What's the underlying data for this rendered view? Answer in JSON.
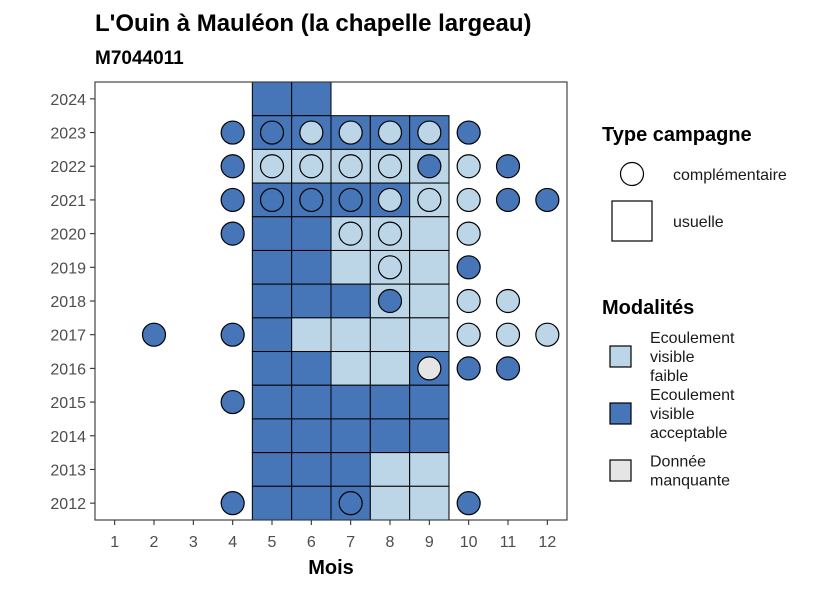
{
  "chart_data": {
    "type": "heatmap",
    "title": "L'Ouin à Mauléon (la chapelle largeau)",
    "subtitle": "M7044011",
    "xlabel": "Mois",
    "ylabel": "",
    "x_ticks": [
      "1",
      "2",
      "3",
      "4",
      "5",
      "6",
      "7",
      "8",
      "9",
      "10",
      "11",
      "12"
    ],
    "y_ticks": [
      "2012",
      "2013",
      "2014",
      "2015",
      "2016",
      "2017",
      "2018",
      "2019",
      "2020",
      "2021",
      "2022",
      "2023",
      "2024"
    ],
    "xlim": [
      0.5,
      12.5
    ],
    "ylim": [
      2011.5,
      2024.5
    ],
    "grid": false,
    "colors": {
      "faible": "#bcd6e8",
      "acceptable": "#4676b8",
      "manquante": "#e5e5e5"
    },
    "legend_campaign": {
      "title": "Type campagne",
      "items": [
        {
          "shape": "circle",
          "label": "complémentaire"
        },
        {
          "shape": "square",
          "label": "usuelle"
        }
      ]
    },
    "legend_modalites": {
      "title": "Modalités",
      "items": [
        {
          "key": "faible",
          "label_lines": [
            "Ecoulement",
            "visible",
            "faible"
          ]
        },
        {
          "key": "acceptable",
          "label_lines": [
            "Ecoulement",
            "visible",
            "acceptable"
          ]
        },
        {
          "key": "manquante",
          "label_lines": [
            "Donnée",
            "manquante"
          ]
        }
      ]
    },
    "squares": [
      {
        "year": 2024,
        "month": 5,
        "mod": "acceptable"
      },
      {
        "year": 2024,
        "month": 6,
        "mod": "acceptable"
      },
      {
        "year": 2023,
        "month": 5,
        "mod": "acceptable"
      },
      {
        "year": 2023,
        "month": 6,
        "mod": "acceptable"
      },
      {
        "year": 2023,
        "month": 7,
        "mod": "acceptable"
      },
      {
        "year": 2023,
        "month": 8,
        "mod": "acceptable"
      },
      {
        "year": 2023,
        "month": 9,
        "mod": "acceptable"
      },
      {
        "year": 2022,
        "month": 5,
        "mod": "faible"
      },
      {
        "year": 2022,
        "month": 6,
        "mod": "faible"
      },
      {
        "year": 2022,
        "month": 7,
        "mod": "faible"
      },
      {
        "year": 2022,
        "month": 8,
        "mod": "faible"
      },
      {
        "year": 2022,
        "month": 9,
        "mod": "faible"
      },
      {
        "year": 2021,
        "month": 5,
        "mod": "acceptable"
      },
      {
        "year": 2021,
        "month": 6,
        "mod": "acceptable"
      },
      {
        "year": 2021,
        "month": 7,
        "mod": "acceptable"
      },
      {
        "year": 2021,
        "month": 8,
        "mod": "acceptable"
      },
      {
        "year": 2021,
        "month": 9,
        "mod": "faible"
      },
      {
        "year": 2020,
        "month": 5,
        "mod": "acceptable"
      },
      {
        "year": 2020,
        "month": 6,
        "mod": "acceptable"
      },
      {
        "year": 2020,
        "month": 7,
        "mod": "faible"
      },
      {
        "year": 2020,
        "month": 8,
        "mod": "faible"
      },
      {
        "year": 2020,
        "month": 9,
        "mod": "faible"
      },
      {
        "year": 2019,
        "month": 5,
        "mod": "acceptable"
      },
      {
        "year": 2019,
        "month": 6,
        "mod": "acceptable"
      },
      {
        "year": 2019,
        "month": 7,
        "mod": "faible"
      },
      {
        "year": 2019,
        "month": 8,
        "mod": "faible"
      },
      {
        "year": 2019,
        "month": 9,
        "mod": "faible"
      },
      {
        "year": 2018,
        "month": 5,
        "mod": "acceptable"
      },
      {
        "year": 2018,
        "month": 6,
        "mod": "acceptable"
      },
      {
        "year": 2018,
        "month": 7,
        "mod": "acceptable"
      },
      {
        "year": 2018,
        "month": 8,
        "mod": "faible"
      },
      {
        "year": 2018,
        "month": 9,
        "mod": "faible"
      },
      {
        "year": 2017,
        "month": 5,
        "mod": "acceptable"
      },
      {
        "year": 2017,
        "month": 6,
        "mod": "faible"
      },
      {
        "year": 2017,
        "month": 7,
        "mod": "faible"
      },
      {
        "year": 2017,
        "month": 8,
        "mod": "faible"
      },
      {
        "year": 2017,
        "month": 9,
        "mod": "faible"
      },
      {
        "year": 2016,
        "month": 5,
        "mod": "acceptable"
      },
      {
        "year": 2016,
        "month": 6,
        "mod": "acceptable"
      },
      {
        "year": 2016,
        "month": 7,
        "mod": "faible"
      },
      {
        "year": 2016,
        "month": 8,
        "mod": "faible"
      },
      {
        "year": 2016,
        "month": 9,
        "mod": "acceptable"
      },
      {
        "year": 2015,
        "month": 5,
        "mod": "acceptable"
      },
      {
        "year": 2015,
        "month": 6,
        "mod": "acceptable"
      },
      {
        "year": 2015,
        "month": 7,
        "mod": "acceptable"
      },
      {
        "year": 2015,
        "month": 8,
        "mod": "acceptable"
      },
      {
        "year": 2015,
        "month": 9,
        "mod": "acceptable"
      },
      {
        "year": 2014,
        "month": 5,
        "mod": "acceptable"
      },
      {
        "year": 2014,
        "month": 6,
        "mod": "acceptable"
      },
      {
        "year": 2014,
        "month": 7,
        "mod": "acceptable"
      },
      {
        "year": 2014,
        "month": 8,
        "mod": "acceptable"
      },
      {
        "year": 2014,
        "month": 9,
        "mod": "acceptable"
      },
      {
        "year": 2013,
        "month": 5,
        "mod": "acceptable"
      },
      {
        "year": 2013,
        "month": 6,
        "mod": "acceptable"
      },
      {
        "year": 2013,
        "month": 7,
        "mod": "acceptable"
      },
      {
        "year": 2013,
        "month": 8,
        "mod": "faible"
      },
      {
        "year": 2013,
        "month": 9,
        "mod": "faible"
      },
      {
        "year": 2012,
        "month": 5,
        "mod": "acceptable"
      },
      {
        "year": 2012,
        "month": 6,
        "mod": "acceptable"
      },
      {
        "year": 2012,
        "month": 7,
        "mod": "acceptable"
      },
      {
        "year": 2012,
        "month": 8,
        "mod": "faible"
      },
      {
        "year": 2012,
        "month": 9,
        "mod": "faible"
      }
    ],
    "circles": [
      {
        "year": 2023,
        "month": 4,
        "mod": "acceptable"
      },
      {
        "year": 2023,
        "month": 5,
        "mod": "acceptable"
      },
      {
        "year": 2023,
        "month": 6,
        "mod": "faible"
      },
      {
        "year": 2023,
        "month": 7,
        "mod": "faible"
      },
      {
        "year": 2023,
        "month": 8,
        "mod": "faible"
      },
      {
        "year": 2023,
        "month": 9,
        "mod": "faible"
      },
      {
        "year": 2023,
        "month": 10,
        "mod": "acceptable"
      },
      {
        "year": 2022,
        "month": 4,
        "mod": "acceptable"
      },
      {
        "year": 2022,
        "month": 5,
        "mod": "faible"
      },
      {
        "year": 2022,
        "month": 6,
        "mod": "faible"
      },
      {
        "year": 2022,
        "month": 7,
        "mod": "faible"
      },
      {
        "year": 2022,
        "month": 8,
        "mod": "faible"
      },
      {
        "year": 2022,
        "month": 9,
        "mod": "acceptable"
      },
      {
        "year": 2022,
        "month": 10,
        "mod": "faible"
      },
      {
        "year": 2022,
        "month": 11,
        "mod": "acceptable"
      },
      {
        "year": 2021,
        "month": 4,
        "mod": "acceptable"
      },
      {
        "year": 2021,
        "month": 5,
        "mod": "acceptable"
      },
      {
        "year": 2021,
        "month": 6,
        "mod": "acceptable"
      },
      {
        "year": 2021,
        "month": 7,
        "mod": "acceptable"
      },
      {
        "year": 2021,
        "month": 8,
        "mod": "faible"
      },
      {
        "year": 2021,
        "month": 9,
        "mod": "faible"
      },
      {
        "year": 2021,
        "month": 10,
        "mod": "faible"
      },
      {
        "year": 2021,
        "month": 11,
        "mod": "acceptable"
      },
      {
        "year": 2021,
        "month": 12,
        "mod": "acceptable"
      },
      {
        "year": 2020,
        "month": 4,
        "mod": "acceptable"
      },
      {
        "year": 2020,
        "month": 7,
        "mod": "faible"
      },
      {
        "year": 2020,
        "month": 8,
        "mod": "faible"
      },
      {
        "year": 2020,
        "month": 10,
        "mod": "faible"
      },
      {
        "year": 2019,
        "month": 8,
        "mod": "faible"
      },
      {
        "year": 2019,
        "month": 10,
        "mod": "acceptable"
      },
      {
        "year": 2018,
        "month": 8,
        "mod": "acceptable"
      },
      {
        "year": 2018,
        "month": 10,
        "mod": "faible"
      },
      {
        "year": 2018,
        "month": 11,
        "mod": "faible"
      },
      {
        "year": 2017,
        "month": 2,
        "mod": "acceptable"
      },
      {
        "year": 2017,
        "month": 4,
        "mod": "acceptable"
      },
      {
        "year": 2017,
        "month": 10,
        "mod": "faible"
      },
      {
        "year": 2017,
        "month": 11,
        "mod": "faible"
      },
      {
        "year": 2017,
        "month": 12,
        "mod": "faible"
      },
      {
        "year": 2016,
        "month": 9,
        "mod": "manquante"
      },
      {
        "year": 2016,
        "month": 10,
        "mod": "acceptable"
      },
      {
        "year": 2016,
        "month": 11,
        "mod": "acceptable"
      },
      {
        "year": 2015,
        "month": 4,
        "mod": "acceptable"
      },
      {
        "year": 2012,
        "month": 4,
        "mod": "acceptable"
      },
      {
        "year": 2012,
        "month": 7,
        "mod": "acceptable"
      },
      {
        "year": 2012,
        "month": 10,
        "mod": "acceptable"
      }
    ]
  }
}
